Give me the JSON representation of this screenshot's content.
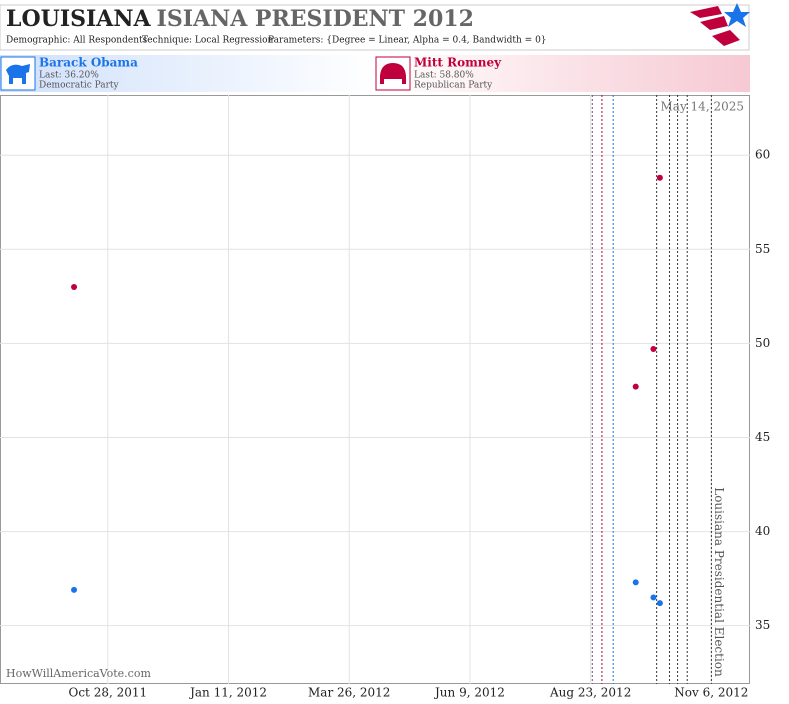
{
  "chart_data": {
    "type": "scatter",
    "title": "LOUISIANA",
    "title_rest": "ISIANA PRESIDENT 2012",
    "subtitle": [
      "Demographic: All Respondents",
      "Technique: Local Regression",
      "Parameters: {Degree = Linear, Alpha = 0.4, Bandwidth = 0}"
    ],
    "x": [
      "2011-10-07",
      "2012-09-20",
      "2012-10-01",
      "2012-10-05"
    ],
    "series": [
      {
        "name": "Barack Obama",
        "last_label": "Last: 36.20%",
        "party": "Democratic Party",
        "color": "#1a73e8",
        "values": [
          36.9,
          37.3,
          36.5,
          36.2
        ]
      },
      {
        "name": "Mitt Romney",
        "last_label": "Last: 58.80%",
        "party": "Republican Party",
        "color": "#c0003c",
        "values": [
          53.0,
          47.7,
          49.7,
          58.8
        ]
      }
    ],
    "xlim": [
      "2011-08-22",
      "2012-11-30"
    ],
    "xticks": [
      {
        "value": "2011-10-28",
        "label": "Oct 28, 2011"
      },
      {
        "value": "2012-01-11",
        "label": "Jan 11, 2012"
      },
      {
        "value": "2012-03-26",
        "label": "Mar 26, 2012"
      },
      {
        "value": "2012-06-09",
        "label": "Jun 9, 2012"
      },
      {
        "value": "2012-08-23",
        "label": "Aug 23, 2012"
      },
      {
        "value": "2012-11-06",
        "label": "Nov 6, 2012"
      }
    ],
    "ylim": [
      31.9,
      63.2
    ],
    "yticks": [
      35,
      40,
      45,
      50,
      55,
      60
    ],
    "grid": true,
    "events": [
      {
        "x": "2012-08-24",
        "color": "#7b3f9e"
      },
      {
        "x": "2012-08-30",
        "color": "#c0003c"
      },
      {
        "x": "2012-09-06",
        "color": "#1a73e8"
      },
      {
        "x": "2012-10-03",
        "color": "#333333"
      },
      {
        "x": "2012-10-11",
        "color": "#333333"
      },
      {
        "x": "2012-10-16",
        "color": "#333333"
      },
      {
        "x": "2012-10-22",
        "color": "#333333"
      }
    ],
    "election": {
      "x": "2012-11-06",
      "label": "Louisiana Presidential Election"
    },
    "date_note": "May 14, 2025",
    "source": "HowWillAmericaVote.com"
  }
}
